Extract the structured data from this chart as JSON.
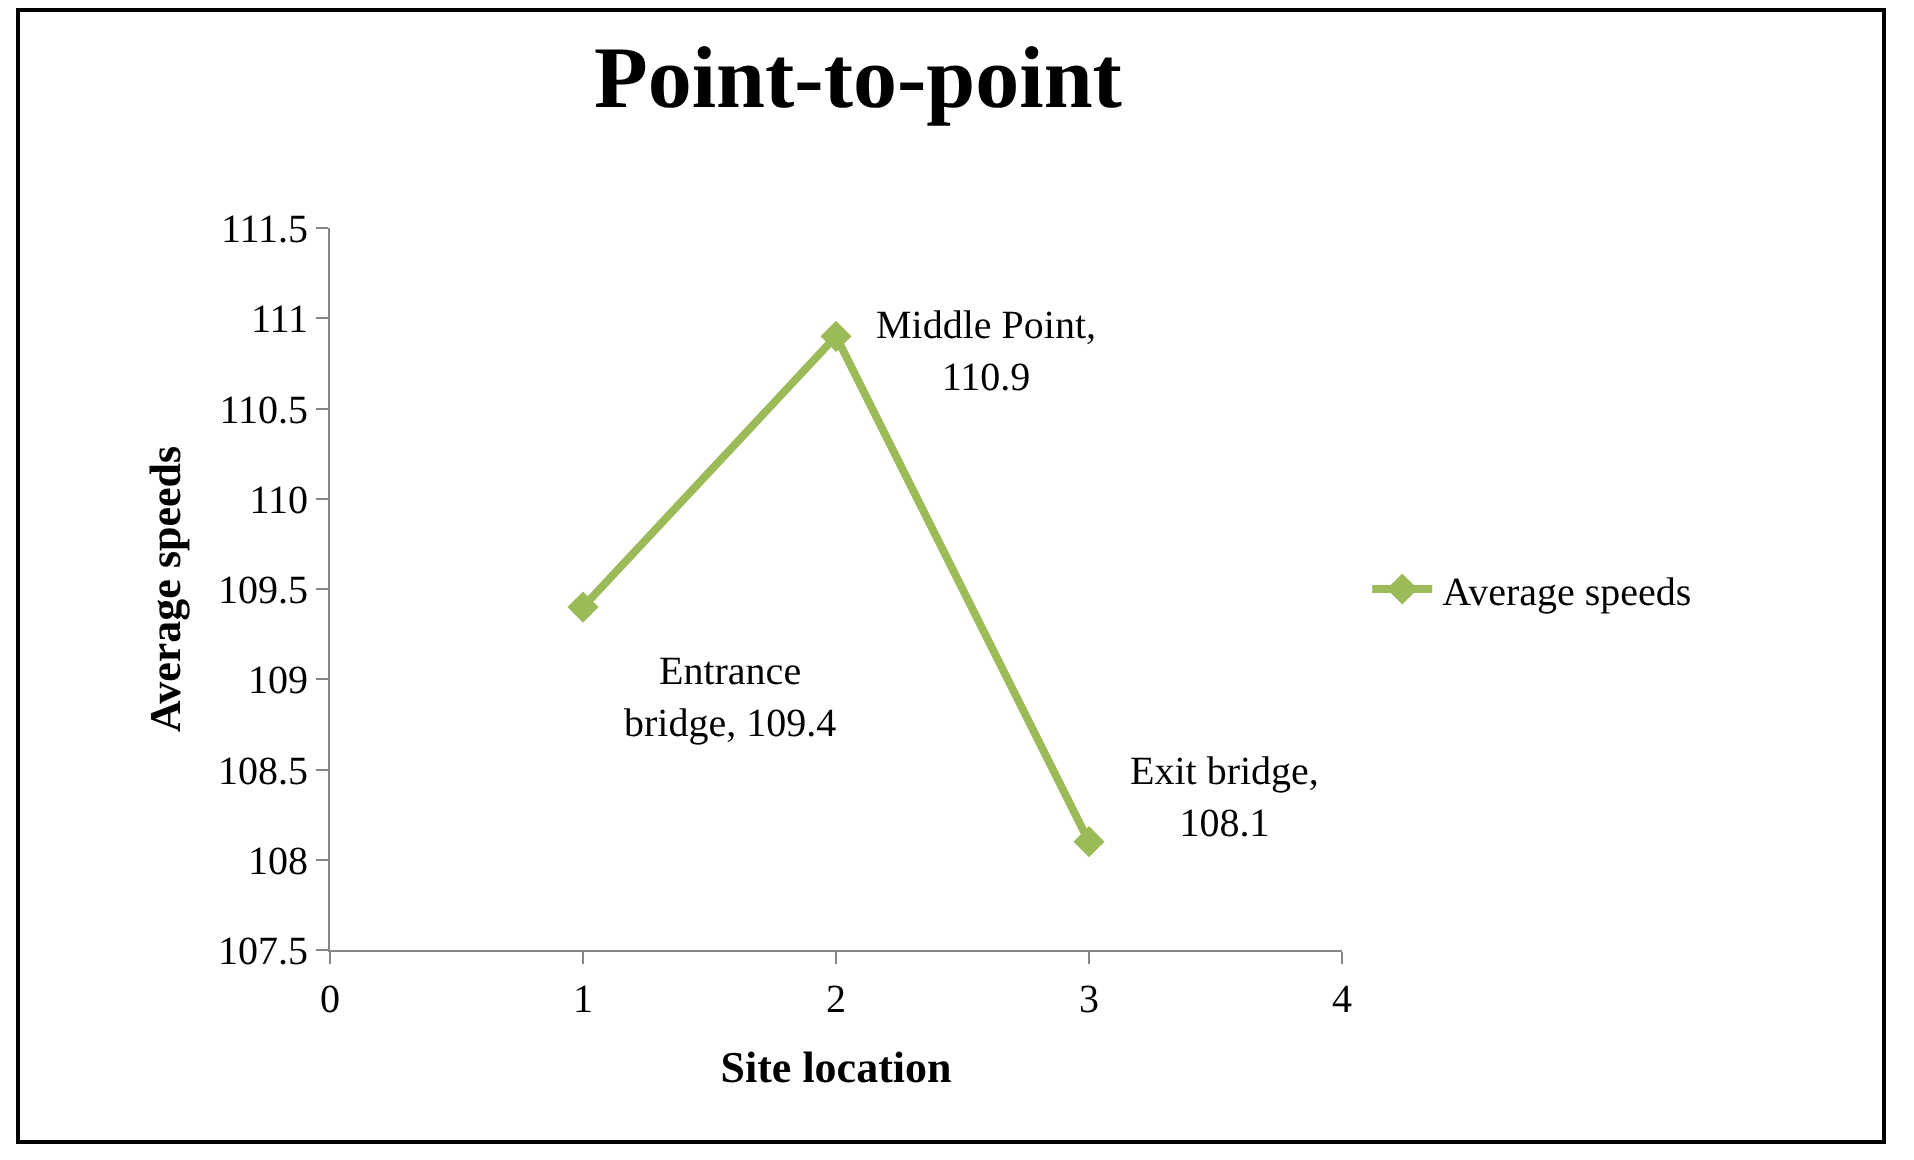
{
  "chart_data": {
    "type": "line",
    "title": "Point-to-point",
    "xlabel": "Site location",
    "ylabel": "Average speeds",
    "x": [
      1,
      2,
      3
    ],
    "series": [
      {
        "name": "Average speeds",
        "color": "#9bbb59",
        "values": [
          109.4,
          110.9,
          108.1
        ]
      }
    ],
    "xlim": [
      0,
      4
    ],
    "xticks": [
      0,
      1,
      2,
      3,
      4
    ],
    "ylim": [
      107.5,
      111.5
    ],
    "yticks": [
      107.5,
      108,
      108.5,
      109,
      109.5,
      110,
      110.5,
      111,
      111.5
    ],
    "annotations": [
      {
        "text": "Entrance bridge, 109.4",
        "x": 1,
        "y": 109.4
      },
      {
        "text": "Middle Point, 110.9",
        "x": 2,
        "y": 110.9
      },
      {
        "text": "Exit bridge, 108.1",
        "x": 3,
        "y": 108.1
      }
    ],
    "marker": "diamond",
    "line_style": "solid",
    "grid": false,
    "legend": "right"
  }
}
